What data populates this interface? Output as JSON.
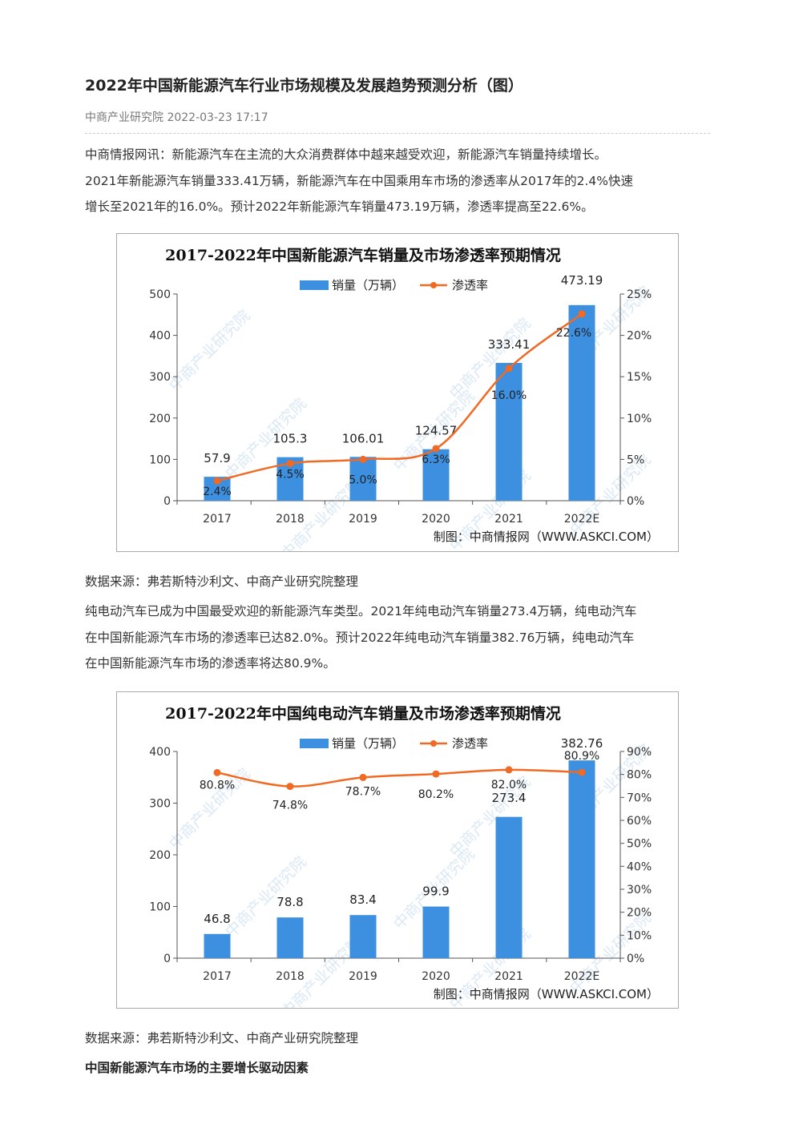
{
  "article": {
    "title": "2022年中国新能源汽车行业市场规模及发展趋势预测分析（图）",
    "meta": "中商产业研究院 2022-03-23 17:17",
    "para1": [
      "中商情报网讯：新能源汽车在主流的大众消费群体中越来越受欢迎，新能源汽车销量持续增长。",
      "2021年新能源汽车销量333.41万辆，新能源汽车在中国乘用车市场的渗透率从2017年的2.4%快速",
      "增长至2021年的16.0%。预计2022年新能源汽车销量473.19万辆，渗透率提高至22.6%。"
    ],
    "source1": "数据来源：弗若斯特沙利文、中商产业研究院整理",
    "para2": [
      "纯电动汽车已成为中国最受欢迎的新能源汽车类型。2021年纯电动汽车销量273.4万辆，纯电动汽车",
      "在中国新能源汽车市场的渗透率已达82.0%。预计2022年纯电动汽车销量382.76万辆，纯电动汽车",
      "在中国新能源汽车市场的渗透率将达80.9%。"
    ],
    "source2": "数据来源：弗若斯特沙利文、中商产业研究院整理",
    "heading": "中国新能源汽车市场的主要增长驱动因素"
  },
  "colors": {
    "bar": "#3d8fe0",
    "line": "#f06a24",
    "watermark": "#bcd6ee"
  },
  "watermark_text": "中商产业研究院",
  "chart_data": [
    {
      "type": "bar",
      "title": "2017-2022年中国新能源汽车销量及市场渗透率预期情况",
      "categories": [
        "2017",
        "2018",
        "2019",
        "2020",
        "2021",
        "2022E"
      ],
      "series": [
        {
          "name": "销量（万辆）",
          "type": "bar",
          "axis": "left",
          "values": [
            57.9,
            105.3,
            106.01,
            124.57,
            333.41,
            473.19
          ],
          "labels": [
            "57.9",
            "105.3",
            "106.01",
            "124.57",
            "333.41",
            "473.19"
          ]
        },
        {
          "name": "渗透率",
          "type": "line",
          "axis": "right",
          "values": [
            2.4,
            4.5,
            5.0,
            6.3,
            16.0,
            22.6
          ],
          "labels": [
            "2.4%",
            "4.5%",
            "5.0%",
            "6.3%",
            "16.0%",
            "22.6%"
          ]
        }
      ],
      "ylim": [
        0,
        500
      ],
      "yticks": [
        "0",
        "100",
        "200",
        "300",
        "400",
        "500"
      ],
      "y2lim": [
        0,
        25
      ],
      "y2ticks": [
        "0%",
        "5%",
        "10%",
        "15%",
        "20%",
        "25%"
      ],
      "legend": "top",
      "grid": false,
      "credit": "制图：中商情报网（WWW.ASKCI.COM）"
    },
    {
      "type": "bar",
      "title": "2017-2022年中国纯电动汽车销量及市场渗透率预期情况",
      "categories": [
        "2017",
        "2018",
        "2019",
        "2020",
        "2021",
        "2022E"
      ],
      "series": [
        {
          "name": "销量（万辆）",
          "type": "bar",
          "axis": "left",
          "values": [
            46.8,
            78.8,
            83.4,
            99.9,
            273.4,
            382.76
          ],
          "labels": [
            "46.8",
            "78.8",
            "83.4",
            "99.9",
            "273.4",
            "382.76"
          ]
        },
        {
          "name": "渗透率",
          "type": "line",
          "axis": "right",
          "values": [
            80.8,
            74.8,
            78.7,
            80.2,
            82.0,
            80.9
          ],
          "labels": [
            "80.8%",
            "74.8%",
            "78.7%",
            "80.2%",
            "82.0%",
            "80.9%"
          ]
        }
      ],
      "ylim": [
        0,
        400
      ],
      "yticks": [
        "0",
        "100",
        "200",
        "300",
        "400"
      ],
      "y2lim": [
        0,
        90
      ],
      "y2ticks": [
        "0%",
        "10%",
        "20%",
        "30%",
        "40%",
        "50%",
        "60%",
        "70%",
        "80%",
        "90%"
      ],
      "legend": "top",
      "grid": false,
      "credit": "制图：中商情报网（WWW.ASKCI.COM）"
    }
  ]
}
